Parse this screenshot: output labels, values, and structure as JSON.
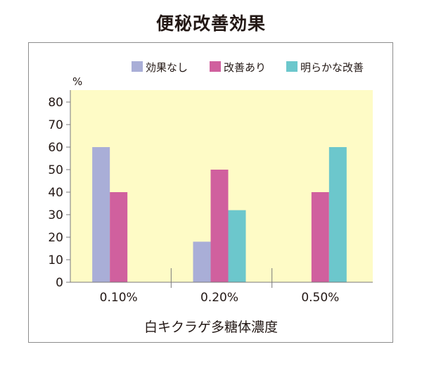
{
  "chart_data": {
    "type": "bar",
    "title": "便秘改善効果",
    "xlabel": "白キクラゲ多糖体濃度",
    "ylabel": "%",
    "ylim": [
      0,
      80
    ],
    "yticks": [
      0,
      10,
      20,
      30,
      40,
      50,
      60,
      70,
      80
    ],
    "grid": false,
    "legend_position": "top-right",
    "categories": [
      "0.10%",
      "0.20%",
      "0.50%"
    ],
    "series": [
      {
        "name": "効果なし",
        "color": "#a9aed7",
        "values": [
          60,
          18,
          0
        ]
      },
      {
        "name": "改善あり",
        "color": "#d0609e",
        "values": [
          40,
          50,
          40
        ]
      },
      {
        "name": "明らかな改善",
        "color": "#6cc7cc",
        "values": [
          0,
          32,
          60
        ]
      }
    ],
    "plot_background": "#fefbc6"
  }
}
